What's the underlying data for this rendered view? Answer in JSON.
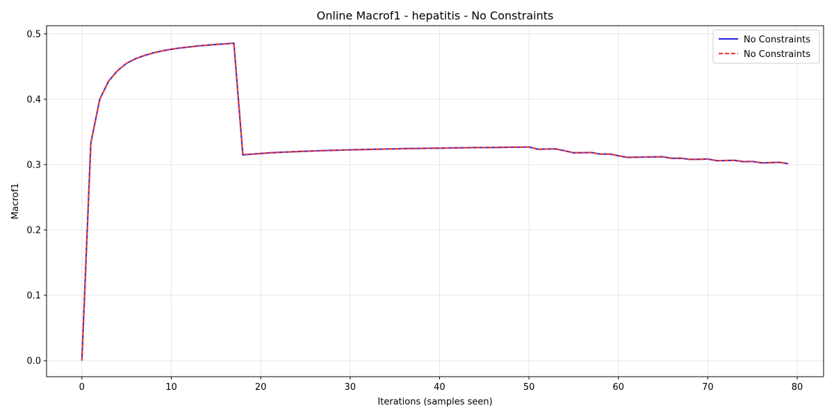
{
  "chart_data": {
    "type": "line",
    "title": "Online Macrof1 - hepatitis - No Constraints",
    "xlabel": "Iterations (samples seen)",
    "ylabel": "Macrof1",
    "xlim": [
      -3.95,
      82.95
    ],
    "ylim": [
      -0.0245,
      0.5125
    ],
    "xticks": [
      0,
      10,
      20,
      30,
      40,
      50,
      60,
      70,
      80
    ],
    "yticks": [
      0.0,
      0.1,
      0.2,
      0.3,
      0.4,
      0.5
    ],
    "xtick_labels": [
      "0",
      "10",
      "20",
      "30",
      "40",
      "50",
      "60",
      "70",
      "80"
    ],
    "ytick_labels": [
      "0.0",
      "0.1",
      "0.2",
      "0.3",
      "0.4",
      "0.5"
    ],
    "grid": true,
    "legend_position": "top-right",
    "x": [
      0,
      1,
      2,
      3,
      4,
      5,
      6,
      7,
      8,
      9,
      10,
      11,
      12,
      13,
      14,
      15,
      16,
      17,
      18,
      19,
      20,
      21,
      22,
      23,
      24,
      25,
      26,
      27,
      28,
      29,
      30,
      31,
      32,
      33,
      34,
      35,
      36,
      37,
      38,
      39,
      40,
      41,
      42,
      43,
      44,
      45,
      46,
      47,
      48,
      49,
      50,
      51,
      52,
      53,
      54,
      55,
      56,
      57,
      58,
      59,
      60,
      61,
      62,
      63,
      64,
      65,
      66,
      67,
      68,
      69,
      70,
      71,
      72,
      73,
      74,
      75,
      76,
      77,
      78,
      79
    ],
    "series": [
      {
        "name": "No Constraints",
        "color": "#2b2bd9",
        "style": "solid",
        "values": [
          0.0,
          0.333,
          0.4,
          0.428,
          0.444,
          0.455,
          0.462,
          0.467,
          0.471,
          0.474,
          0.4765,
          0.4785,
          0.48,
          0.4815,
          0.4827,
          0.4838,
          0.4848,
          0.4857,
          0.315,
          0.316,
          0.317,
          0.318,
          0.3187,
          0.3193,
          0.3199,
          0.3204,
          0.3209,
          0.3214,
          0.3218,
          0.3222,
          0.3226,
          0.3229,
          0.3232,
          0.3235,
          0.3238,
          0.3241,
          0.3244,
          0.3246,
          0.3248,
          0.325,
          0.3252,
          0.3254,
          0.3256,
          0.3258,
          0.326,
          0.3261,
          0.3263,
          0.3264,
          0.3266,
          0.3267,
          0.327,
          0.3235,
          0.3238,
          0.324,
          0.3212,
          0.318,
          0.3182,
          0.3185,
          0.316,
          0.3162,
          0.3135,
          0.311,
          0.3113,
          0.3116,
          0.3118,
          0.312,
          0.3095,
          0.3098,
          0.308,
          0.3082,
          0.3085,
          0.306,
          0.3062,
          0.3065,
          0.3045,
          0.3048,
          0.3027,
          0.303,
          0.3035,
          0.3015
        ]
      },
      {
        "name": "No Constraints",
        "color": "#ee3b3b",
        "style": "dashed",
        "values": [
          0.0,
          0.333,
          0.4,
          0.428,
          0.444,
          0.455,
          0.462,
          0.467,
          0.471,
          0.474,
          0.4765,
          0.4785,
          0.48,
          0.4815,
          0.4827,
          0.4838,
          0.4848,
          0.4857,
          0.315,
          0.316,
          0.317,
          0.318,
          0.3187,
          0.3193,
          0.3199,
          0.3204,
          0.3209,
          0.3214,
          0.3218,
          0.3222,
          0.3226,
          0.3229,
          0.3232,
          0.3235,
          0.3238,
          0.3241,
          0.3244,
          0.3246,
          0.3248,
          0.325,
          0.3252,
          0.3254,
          0.3256,
          0.3258,
          0.326,
          0.3261,
          0.3263,
          0.3264,
          0.3266,
          0.3267,
          0.327,
          0.3235,
          0.3238,
          0.324,
          0.3212,
          0.318,
          0.3182,
          0.3185,
          0.316,
          0.3162,
          0.3135,
          0.311,
          0.3113,
          0.3116,
          0.3118,
          0.312,
          0.3095,
          0.3098,
          0.308,
          0.3082,
          0.3085,
          0.306,
          0.3062,
          0.3065,
          0.3045,
          0.3048,
          0.3027,
          0.303,
          0.3035,
          0.3015
        ]
      }
    ]
  }
}
